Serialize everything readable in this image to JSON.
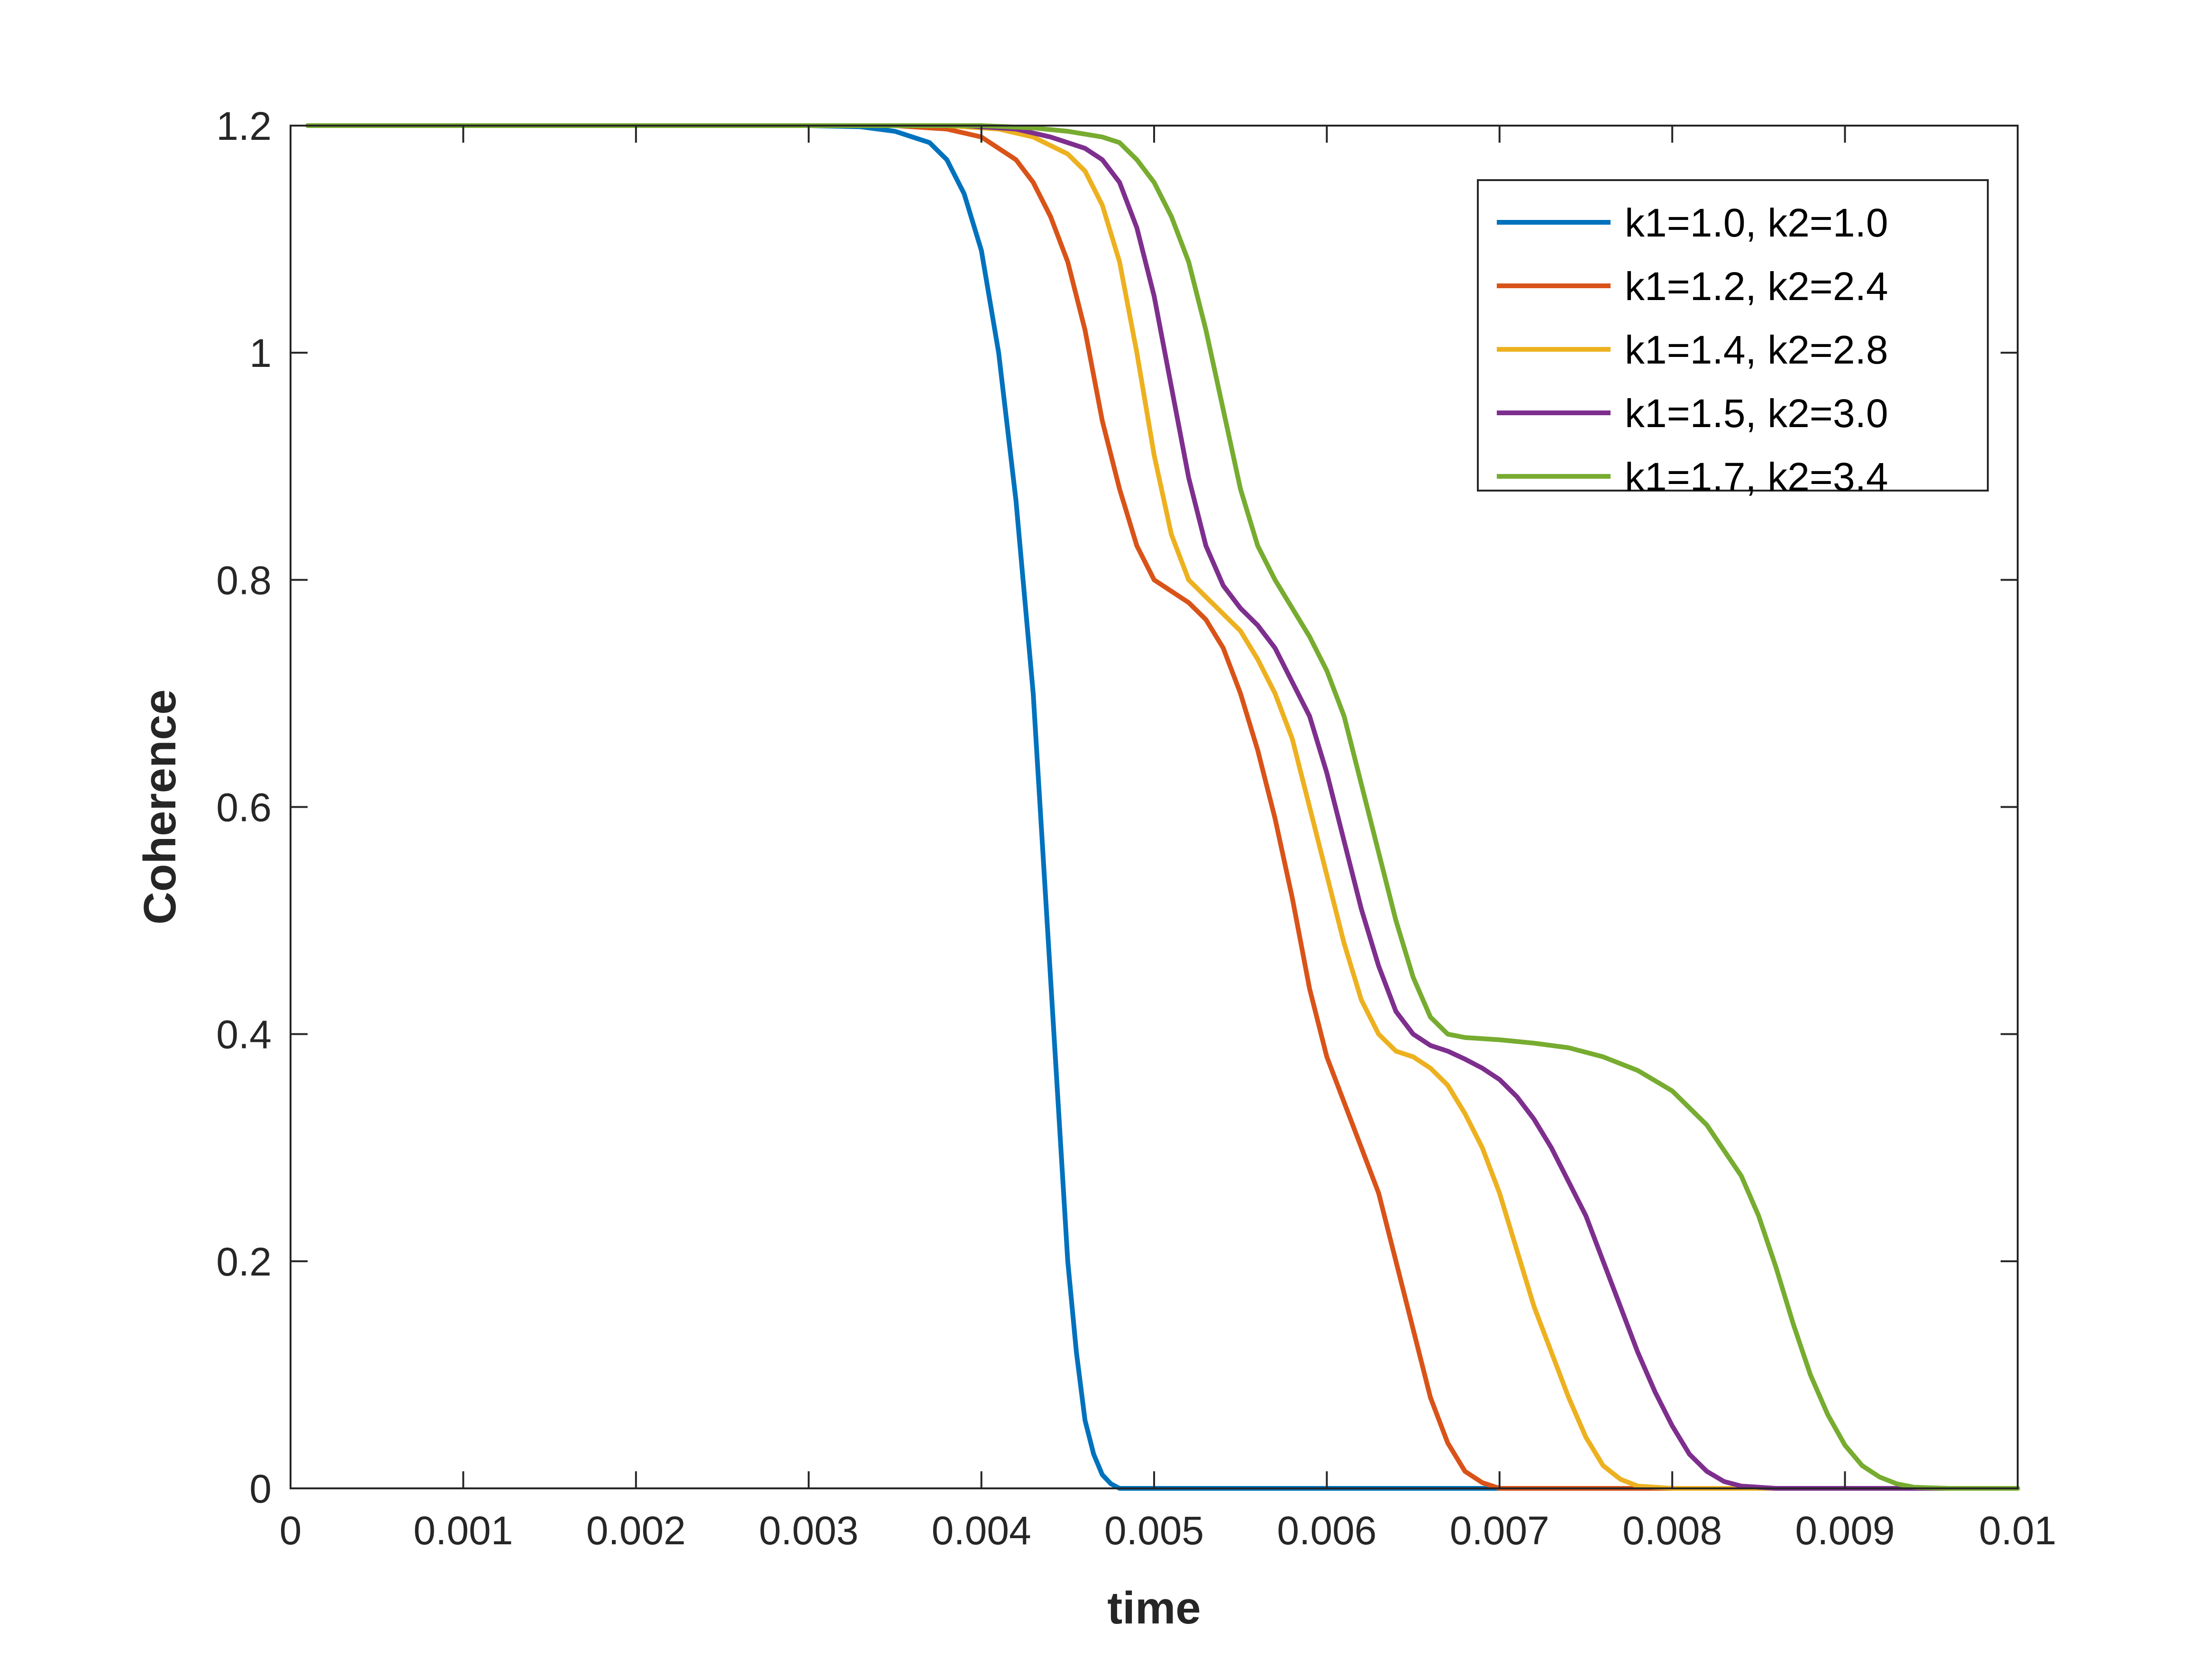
{
  "chart_data": {
    "type": "line",
    "xlabel": "time",
    "ylabel": "Coherence",
    "xlim": [
      0,
      0.01
    ],
    "ylim": [
      0,
      1.2
    ],
    "x_ticks": [
      0,
      0.001,
      0.002,
      0.003,
      0.004,
      0.005,
      0.006,
      0.007,
      0.008,
      0.009,
      0.01
    ],
    "x_tick_labels": [
      "0",
      "0.001",
      "0.002",
      "0.003",
      "0.004",
      "0.005",
      "0.006",
      "0.007",
      "0.008",
      "0.009",
      "0.01"
    ],
    "y_ticks": [
      0,
      0.2,
      0.4,
      0.6,
      0.8,
      1.0,
      1.2
    ],
    "y_tick_labels": [
      "0",
      "0.2",
      "0.4",
      "0.6",
      "0.8",
      "1",
      "1.2"
    ],
    "grid": false,
    "legend_position": "top-right",
    "series": [
      {
        "name": "k1=1.0, k2=1.0",
        "color": "#0072BD",
        "points": [
          [
            0.0001,
            1.2
          ],
          [
            0.003,
            1.2
          ],
          [
            0.0033,
            1.199
          ],
          [
            0.0035,
            1.195
          ],
          [
            0.0037,
            1.185
          ],
          [
            0.0038,
            1.17
          ],
          [
            0.0039,
            1.14
          ],
          [
            0.004,
            1.09
          ],
          [
            0.0041,
            1.0
          ],
          [
            0.0042,
            0.87
          ],
          [
            0.0043,
            0.7
          ],
          [
            0.0044,
            0.45
          ],
          [
            0.0045,
            0.2
          ],
          [
            0.00455,
            0.12
          ],
          [
            0.0046,
            0.06
          ],
          [
            0.00465,
            0.03
          ],
          [
            0.0047,
            0.012
          ],
          [
            0.00475,
            0.004
          ],
          [
            0.0048,
            0.0
          ],
          [
            0.01,
            0.0
          ]
        ]
      },
      {
        "name": "k1=1.2, k2=2.4",
        "color": "#D95319",
        "points": [
          [
            0.0001,
            1.2
          ],
          [
            0.0035,
            1.2
          ],
          [
            0.0038,
            1.197
          ],
          [
            0.004,
            1.19
          ],
          [
            0.0042,
            1.17
          ],
          [
            0.0043,
            1.15
          ],
          [
            0.0044,
            1.12
          ],
          [
            0.0045,
            1.08
          ],
          [
            0.0046,
            1.02
          ],
          [
            0.0047,
            0.94
          ],
          [
            0.0048,
            0.88
          ],
          [
            0.0049,
            0.83
          ],
          [
            0.005,
            0.8
          ],
          [
            0.0051,
            0.79
          ],
          [
            0.0052,
            0.78
          ],
          [
            0.0053,
            0.765
          ],
          [
            0.0054,
            0.74
          ],
          [
            0.0055,
            0.7
          ],
          [
            0.0056,
            0.65
          ],
          [
            0.0057,
            0.59
          ],
          [
            0.0058,
            0.52
          ],
          [
            0.0059,
            0.44
          ],
          [
            0.006,
            0.38
          ],
          [
            0.0061,
            0.34
          ],
          [
            0.0062,
            0.3
          ],
          [
            0.0063,
            0.26
          ],
          [
            0.0064,
            0.2
          ],
          [
            0.0065,
            0.14
          ],
          [
            0.0066,
            0.08
          ],
          [
            0.0067,
            0.04
          ],
          [
            0.0068,
            0.015
          ],
          [
            0.0069,
            0.005
          ],
          [
            0.007,
            0.0
          ],
          [
            0.01,
            0.0
          ]
        ]
      },
      {
        "name": "k1=1.4, k2=2.8",
        "color": "#EDB120",
        "points": [
          [
            0.0001,
            1.2
          ],
          [
            0.0038,
            1.2
          ],
          [
            0.0041,
            1.197
          ],
          [
            0.0043,
            1.19
          ],
          [
            0.0045,
            1.175
          ],
          [
            0.0046,
            1.16
          ],
          [
            0.0047,
            1.13
          ],
          [
            0.0048,
            1.08
          ],
          [
            0.0049,
            1.0
          ],
          [
            0.005,
            0.91
          ],
          [
            0.0051,
            0.84
          ],
          [
            0.0052,
            0.8
          ],
          [
            0.0053,
            0.785
          ],
          [
            0.0054,
            0.77
          ],
          [
            0.0055,
            0.755
          ],
          [
            0.0056,
            0.73
          ],
          [
            0.0057,
            0.7
          ],
          [
            0.0058,
            0.66
          ],
          [
            0.0059,
            0.6
          ],
          [
            0.006,
            0.54
          ],
          [
            0.0061,
            0.48
          ],
          [
            0.0062,
            0.43
          ],
          [
            0.0063,
            0.4
          ],
          [
            0.0064,
            0.385
          ],
          [
            0.0065,
            0.38
          ],
          [
            0.0066,
            0.37
          ],
          [
            0.0067,
            0.355
          ],
          [
            0.0068,
            0.33
          ],
          [
            0.0069,
            0.3
          ],
          [
            0.007,
            0.26
          ],
          [
            0.0071,
            0.21
          ],
          [
            0.0072,
            0.16
          ],
          [
            0.0073,
            0.12
          ],
          [
            0.0074,
            0.08
          ],
          [
            0.0075,
            0.045
          ],
          [
            0.0076,
            0.02
          ],
          [
            0.0077,
            0.008
          ],
          [
            0.0078,
            0.002
          ],
          [
            0.008,
            0.0
          ],
          [
            0.01,
            0.0
          ]
        ]
      },
      {
        "name": "k1=1.5, k2=3.0",
        "color": "#7E2F8E",
        "points": [
          [
            0.0001,
            1.2
          ],
          [
            0.0039,
            1.2
          ],
          [
            0.0042,
            1.197
          ],
          [
            0.0044,
            1.19
          ],
          [
            0.0046,
            1.18
          ],
          [
            0.0047,
            1.17
          ],
          [
            0.0048,
            1.15
          ],
          [
            0.0049,
            1.11
          ],
          [
            0.005,
            1.05
          ],
          [
            0.0051,
            0.97
          ],
          [
            0.0052,
            0.89
          ],
          [
            0.0053,
            0.83
          ],
          [
            0.0054,
            0.795
          ],
          [
            0.0055,
            0.775
          ],
          [
            0.0056,
            0.76
          ],
          [
            0.0057,
            0.74
          ],
          [
            0.0058,
            0.71
          ],
          [
            0.0059,
            0.68
          ],
          [
            0.006,
            0.63
          ],
          [
            0.0061,
            0.57
          ],
          [
            0.0062,
            0.51
          ],
          [
            0.0063,
            0.46
          ],
          [
            0.0064,
            0.42
          ],
          [
            0.0065,
            0.4
          ],
          [
            0.0066,
            0.39
          ],
          [
            0.0067,
            0.385
          ],
          [
            0.0068,
            0.378
          ],
          [
            0.0069,
            0.37
          ],
          [
            0.007,
            0.36
          ],
          [
            0.0071,
            0.345
          ],
          [
            0.0072,
            0.325
          ],
          [
            0.0073,
            0.3
          ],
          [
            0.0074,
            0.27
          ],
          [
            0.0075,
            0.24
          ],
          [
            0.0076,
            0.2
          ],
          [
            0.0077,
            0.16
          ],
          [
            0.0078,
            0.12
          ],
          [
            0.0079,
            0.085
          ],
          [
            0.008,
            0.055
          ],
          [
            0.0081,
            0.03
          ],
          [
            0.0082,
            0.015
          ],
          [
            0.0083,
            0.006
          ],
          [
            0.0084,
            0.002
          ],
          [
            0.0086,
            0.0
          ],
          [
            0.01,
            0.0
          ]
        ]
      },
      {
        "name": "k1=1.7, k2=3.4",
        "color": "#77AC30",
        "points": [
          [
            0.0001,
            1.2
          ],
          [
            0.004,
            1.2
          ],
          [
            0.0043,
            1.198
          ],
          [
            0.0045,
            1.195
          ],
          [
            0.0047,
            1.19
          ],
          [
            0.0048,
            1.185
          ],
          [
            0.0049,
            1.17
          ],
          [
            0.005,
            1.15
          ],
          [
            0.0051,
            1.12
          ],
          [
            0.0052,
            1.08
          ],
          [
            0.0053,
            1.02
          ],
          [
            0.0054,
            0.95
          ],
          [
            0.0055,
            0.88
          ],
          [
            0.0056,
            0.83
          ],
          [
            0.0057,
            0.8
          ],
          [
            0.0058,
            0.775
          ],
          [
            0.0059,
            0.75
          ],
          [
            0.006,
            0.72
          ],
          [
            0.0061,
            0.68
          ],
          [
            0.0062,
            0.62
          ],
          [
            0.0063,
            0.56
          ],
          [
            0.0064,
            0.5
          ],
          [
            0.0065,
            0.45
          ],
          [
            0.0066,
            0.415
          ],
          [
            0.0067,
            0.4
          ],
          [
            0.0068,
            0.397
          ],
          [
            0.007,
            0.395
          ],
          [
            0.0072,
            0.392
          ],
          [
            0.0074,
            0.388
          ],
          [
            0.0076,
            0.38
          ],
          [
            0.0078,
            0.368
          ],
          [
            0.008,
            0.35
          ],
          [
            0.0082,
            0.32
          ],
          [
            0.0084,
            0.275
          ],
          [
            0.0085,
            0.24
          ],
          [
            0.0086,
            0.195
          ],
          [
            0.0087,
            0.145
          ],
          [
            0.0088,
            0.1
          ],
          [
            0.0089,
            0.065
          ],
          [
            0.009,
            0.038
          ],
          [
            0.0091,
            0.02
          ],
          [
            0.0092,
            0.01
          ],
          [
            0.0093,
            0.004
          ],
          [
            0.0094,
            0.001
          ],
          [
            0.0096,
            0.0
          ],
          [
            0.01,
            0.0
          ]
        ]
      }
    ]
  }
}
